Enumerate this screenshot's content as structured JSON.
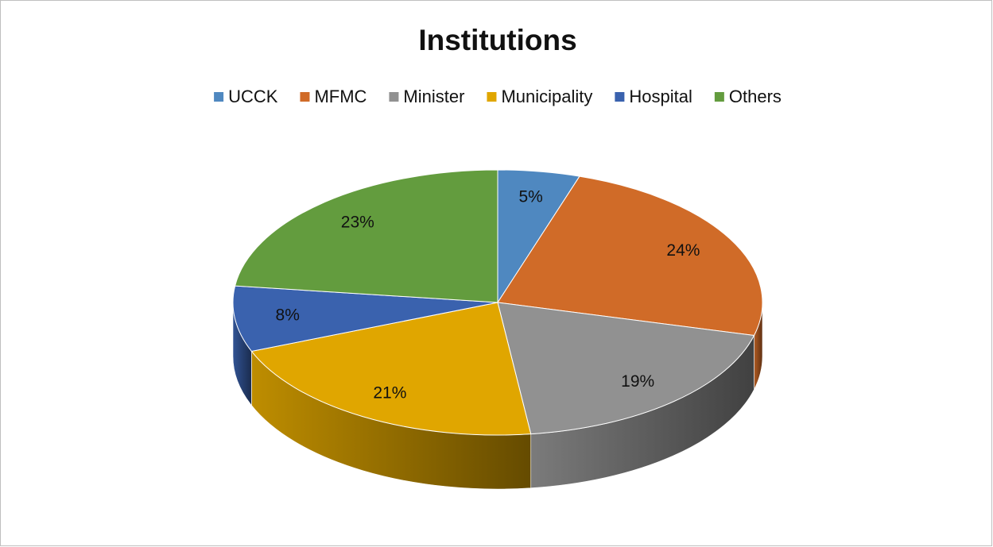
{
  "chart_data": {
    "type": "pie3d",
    "title": "Institutions",
    "categories": [
      "UCCK",
      "MFMC",
      "Minister",
      "Municipality",
      "Hospital",
      "Others"
    ],
    "values": [
      5,
      24,
      19,
      21,
      8,
      23
    ],
    "value_labels": [
      "5%",
      "24%",
      "19%",
      "21%",
      "8%",
      "23%"
    ],
    "colors": [
      "#4f88c0",
      "#d06b28",
      "#919191",
      "#e0a600",
      "#3a62ae",
      "#639c3e"
    ],
    "legend": "top"
  }
}
